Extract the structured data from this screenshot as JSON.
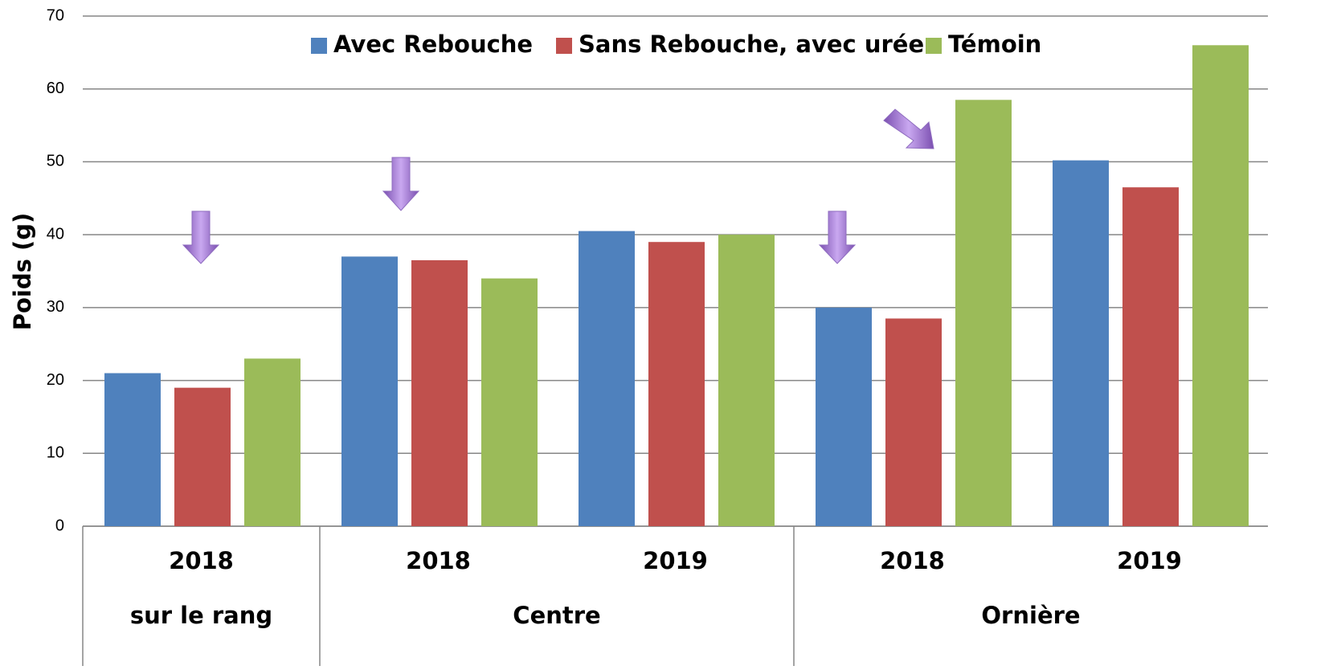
{
  "chart_data": {
    "type": "bar",
    "ylabel": "Poids (g)",
    "groups": [
      {
        "name": "sur le rang",
        "categories": [
          "2018"
        ]
      },
      {
        "name": "Centre",
        "categories": [
          "2018",
          "2019"
        ]
      },
      {
        "name": "Ornière",
        "categories": [
          "2018",
          "2019"
        ]
      }
    ],
    "series": [
      {
        "name": "Avec Rebouche",
        "color": "#4f81bd",
        "values": [
          21,
          37,
          40.5,
          30,
          50.2
        ]
      },
      {
        "name": "Sans Rebouche, avec urée",
        "color": "#c0504d",
        "values": [
          19,
          36.5,
          39,
          28.5,
          46.5
        ]
      },
      {
        "name": "Témoin",
        "color": "#9bbb59",
        "values": [
          23,
          34,
          40,
          58.5,
          66
        ]
      }
    ],
    "ylim": [
      0,
      70
    ],
    "yticks": [
      0,
      10,
      20,
      30,
      40,
      50,
      60,
      70
    ],
    "grid": true,
    "legend": "top"
  }
}
